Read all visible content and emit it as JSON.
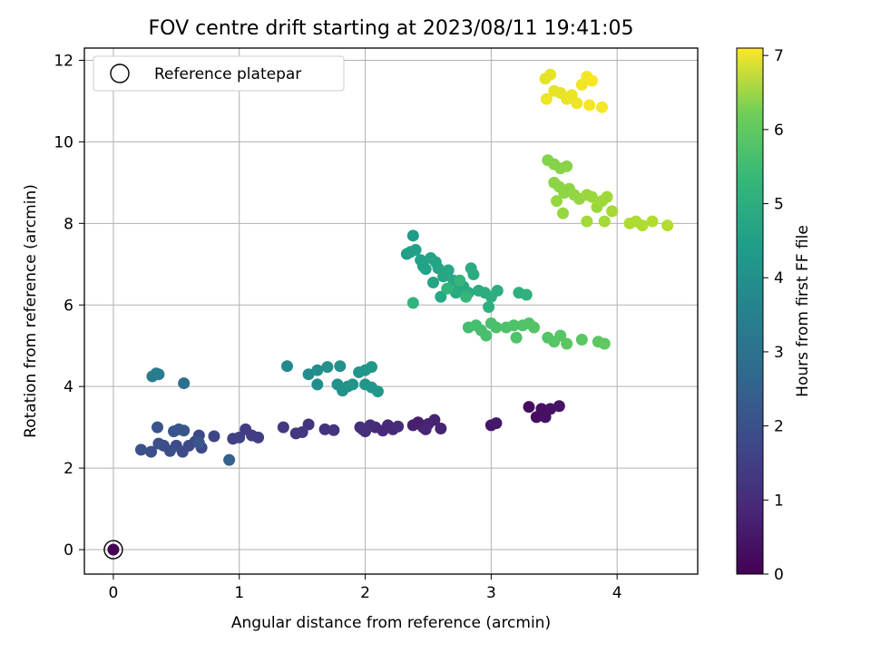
{
  "chart_data": {
    "type": "scatter",
    "title": "FOV centre drift starting at 2023/08/11 19:41:05",
    "xlabel": "Angular distance from reference (arcmin)",
    "ylabel": "Rotation from reference (arcmin)",
    "xlim": [
      -0.23,
      4.64
    ],
    "ylim": [
      -0.6,
      12.3
    ],
    "xticks": [
      "0",
      "1",
      "2",
      "3",
      "4"
    ],
    "yticks": [
      "0",
      "2",
      "4",
      "6",
      "8",
      "10",
      "12"
    ],
    "grid": true,
    "legend": {
      "position": "top-left",
      "entries": [
        "Reference platepar"
      ]
    },
    "colorbar": {
      "label": "Hours from first FF file",
      "range": [
        0,
        7.1
      ],
      "ticks": [
        "0",
        "1",
        "2",
        "3",
        "4",
        "5",
        "6",
        "7"
      ],
      "colormap": "viridis"
    },
    "reference": {
      "x": 0,
      "y": 0
    },
    "points": [
      [
        0,
        0,
        0.05
      ],
      [
        3.3,
        3.5,
        0.25
      ],
      [
        3.36,
        3.25,
        0.27
      ],
      [
        3.4,
        3.45,
        0.3
      ],
      [
        3.43,
        3.25,
        0.32
      ],
      [
        3.47,
        3.45,
        0.34
      ],
      [
        3.54,
        3.52,
        0.36
      ],
      [
        3.0,
        3.05,
        0.45
      ],
      [
        3.04,
        3.1,
        0.47
      ],
      [
        2.38,
        3.05,
        0.6
      ],
      [
        2.42,
        3.12,
        0.62
      ],
      [
        2.46,
        3.0,
        0.64
      ],
      [
        2.5,
        3.08,
        0.66
      ],
      [
        2.55,
        3.18,
        0.68
      ],
      [
        2.6,
        2.97,
        0.7
      ],
      [
        2.48,
        2.95,
        0.72
      ],
      [
        2.08,
        3.0,
        0.8
      ],
      [
        2.14,
        2.92,
        0.82
      ],
      [
        2.18,
        3.05,
        0.84
      ],
      [
        2.22,
        2.95,
        0.86
      ],
      [
        2.26,
        3.02,
        0.88
      ],
      [
        1.96,
        3.0,
        0.92
      ],
      [
        2.0,
        2.9,
        0.94
      ],
      [
        2.04,
        3.05,
        0.96
      ],
      [
        1.98,
        2.95,
        0.98
      ],
      [
        1.68,
        2.95,
        1.05
      ],
      [
        1.75,
        2.93,
        1.07
      ],
      [
        1.55,
        3.07,
        1.1
      ],
      [
        1.5,
        2.88,
        1.12
      ],
      [
        1.45,
        2.85,
        1.15
      ],
      [
        1.35,
        3.0,
        1.2
      ],
      [
        1.05,
        2.95,
        1.3
      ],
      [
        1.1,
        2.8,
        1.32
      ],
      [
        1.15,
        2.75,
        1.34
      ],
      [
        0.95,
        2.72,
        1.38
      ],
      [
        1.0,
        2.75,
        1.4
      ],
      [
        0.8,
        2.78,
        1.5
      ],
      [
        0.7,
        2.5,
        1.55
      ],
      [
        0.68,
        2.8,
        1.57
      ],
      [
        0.65,
        2.65,
        1.6
      ],
      [
        0.6,
        2.55,
        1.62
      ],
      [
        0.55,
        2.4,
        1.64
      ],
      [
        0.5,
        2.55,
        1.66
      ],
      [
        0.45,
        2.42,
        1.7
      ],
      [
        0.4,
        2.55,
        1.72
      ],
      [
        0.36,
        2.6,
        1.74
      ],
      [
        0.3,
        2.4,
        1.76
      ],
      [
        0.22,
        2.45,
        1.78
      ],
      [
        0.35,
        3.0,
        1.85
      ],
      [
        0.48,
        2.9,
        1.87
      ],
      [
        0.52,
        2.95,
        1.89
      ],
      [
        0.56,
        2.92,
        1.91
      ],
      [
        0.68,
        2.62,
        1.95
      ],
      [
        0.92,
        2.2,
        2.2
      ],
      [
        0.56,
        4.08,
        2.6
      ],
      [
        0.31,
        4.25,
        2.9
      ],
      [
        0.34,
        4.32,
        2.95
      ],
      [
        0.36,
        4.3,
        3.0
      ],
      [
        1.38,
        4.5,
        3.35
      ],
      [
        1.55,
        4.3,
        3.45
      ],
      [
        1.62,
        4.05,
        3.5
      ],
      [
        1.62,
        4.4,
        3.52
      ],
      [
        1.7,
        4.48,
        3.55
      ],
      [
        1.8,
        4.5,
        3.58
      ],
      [
        1.78,
        4.05,
        3.6
      ],
      [
        1.82,
        3.9,
        3.62
      ],
      [
        1.86,
        4.0,
        3.64
      ],
      [
        1.9,
        4.05,
        3.66
      ],
      [
        1.95,
        4.35,
        3.7
      ],
      [
        2.0,
        4.4,
        3.72
      ],
      [
        2.05,
        4.48,
        3.74
      ],
      [
        2.0,
        4.05,
        3.76
      ],
      [
        2.05,
        3.98,
        3.78
      ],
      [
        2.1,
        3.88,
        3.8
      ],
      [
        2.38,
        7.7,
        3.9
      ],
      [
        2.33,
        7.25,
        4.0
      ],
      [
        2.36,
        7.3,
        4.02
      ],
      [
        2.4,
        7.35,
        4.04
      ],
      [
        2.44,
        7.1,
        4.06
      ],
      [
        2.46,
        6.95,
        4.08
      ],
      [
        2.48,
        6.88,
        4.1
      ],
      [
        2.52,
        7.15,
        4.12
      ],
      [
        2.56,
        7.05,
        4.14
      ],
      [
        2.58,
        6.9,
        4.16
      ],
      [
        2.54,
        6.55,
        4.18
      ],
      [
        2.62,
        6.7,
        4.2
      ],
      [
        2.6,
        6.2,
        4.22
      ],
      [
        2.66,
        6.85,
        4.24
      ],
      [
        2.7,
        6.6,
        4.26
      ],
      [
        2.74,
        6.5,
        4.28
      ],
      [
        2.78,
        6.45,
        4.3
      ],
      [
        2.72,
        6.3,
        4.32
      ],
      [
        2.82,
        6.3,
        4.34
      ],
      [
        2.86,
        6.75,
        4.36
      ],
      [
        2.84,
        6.9,
        4.38
      ],
      [
        2.9,
        6.35,
        4.4
      ],
      [
        2.95,
        6.3,
        4.42
      ],
      [
        3.0,
        6.2,
        4.44
      ],
      [
        3.05,
        6.35,
        4.46
      ],
      [
        2.98,
        5.95,
        4.48
      ],
      [
        3.22,
        6.3,
        4.5
      ],
      [
        3.28,
        6.25,
        4.52
      ],
      [
        2.38,
        6.05,
        4.6
      ],
      [
        2.65,
        6.4,
        4.65
      ],
      [
        2.75,
        6.6,
        4.68
      ],
      [
        2.8,
        6.2,
        4.7
      ],
      [
        2.82,
        5.45,
        4.95
      ],
      [
        2.88,
        5.5,
        4.97
      ],
      [
        2.92,
        5.38,
        4.99
      ],
      [
        2.96,
        5.25,
        5.0
      ],
      [
        3.0,
        5.55,
        5.02
      ],
      [
        3.04,
        5.45,
        5.04
      ],
      [
        3.12,
        5.45,
        5.06
      ],
      [
        3.18,
        5.5,
        5.08
      ],
      [
        3.2,
        5.2,
        5.1
      ],
      [
        3.25,
        5.5,
        5.12
      ],
      [
        3.3,
        5.55,
        5.14
      ],
      [
        3.34,
        5.45,
        5.16
      ],
      [
        3.45,
        5.2,
        5.18
      ],
      [
        3.5,
        5.1,
        5.2
      ],
      [
        3.55,
        5.25,
        5.22
      ],
      [
        3.6,
        5.05,
        5.24
      ],
      [
        3.72,
        5.15,
        5.26
      ],
      [
        3.85,
        5.1,
        5.28
      ],
      [
        3.9,
        5.05,
        5.3
      ],
      [
        3.45,
        9.55,
        5.75
      ],
      [
        3.5,
        9.45,
        5.77
      ],
      [
        3.55,
        9.35,
        5.79
      ],
      [
        3.6,
        9.4,
        5.81
      ],
      [
        3.5,
        9.0,
        5.83
      ],
      [
        3.54,
        8.9,
        5.85
      ],
      [
        3.58,
        8.75,
        5.87
      ],
      [
        3.62,
        8.85,
        5.89
      ],
      [
        3.66,
        8.7,
        5.91
      ],
      [
        3.7,
        8.6,
        5.93
      ],
      [
        3.52,
        8.55,
        5.95
      ],
      [
        3.57,
        8.25,
        5.97
      ],
      [
        3.76,
        8.7,
        5.99
      ],
      [
        3.8,
        8.65,
        6.01
      ],
      [
        3.84,
        8.4,
        6.03
      ],
      [
        3.88,
        8.55,
        6.05
      ],
      [
        3.92,
        8.65,
        6.07
      ],
      [
        3.76,
        8.05,
        6.09
      ],
      [
        3.9,
        8.05,
        6.11
      ],
      [
        3.96,
        8.3,
        6.13
      ],
      [
        4.1,
        8.0,
        6.2
      ],
      [
        4.15,
        8.05,
        6.22
      ],
      [
        4.2,
        7.95,
        6.24
      ],
      [
        4.28,
        8.05,
        6.26
      ],
      [
        4.4,
        7.95,
        6.28
      ],
      [
        3.43,
        11.55,
        6.8
      ],
      [
        3.47,
        11.65,
        6.82
      ],
      [
        3.5,
        11.25,
        6.84
      ],
      [
        3.55,
        11.2,
        6.86
      ],
      [
        3.6,
        11.05,
        6.88
      ],
      [
        3.64,
        11.15,
        6.9
      ],
      [
        3.44,
        11.05,
        6.92
      ],
      [
        3.68,
        10.95,
        6.94
      ],
      [
        3.72,
        11.4,
        6.96
      ],
      [
        3.76,
        11.6,
        6.98
      ],
      [
        3.78,
        10.9,
        7.0
      ],
      [
        3.88,
        10.85,
        7.02
      ],
      [
        3.8,
        11.5,
        7.04
      ]
    ]
  }
}
